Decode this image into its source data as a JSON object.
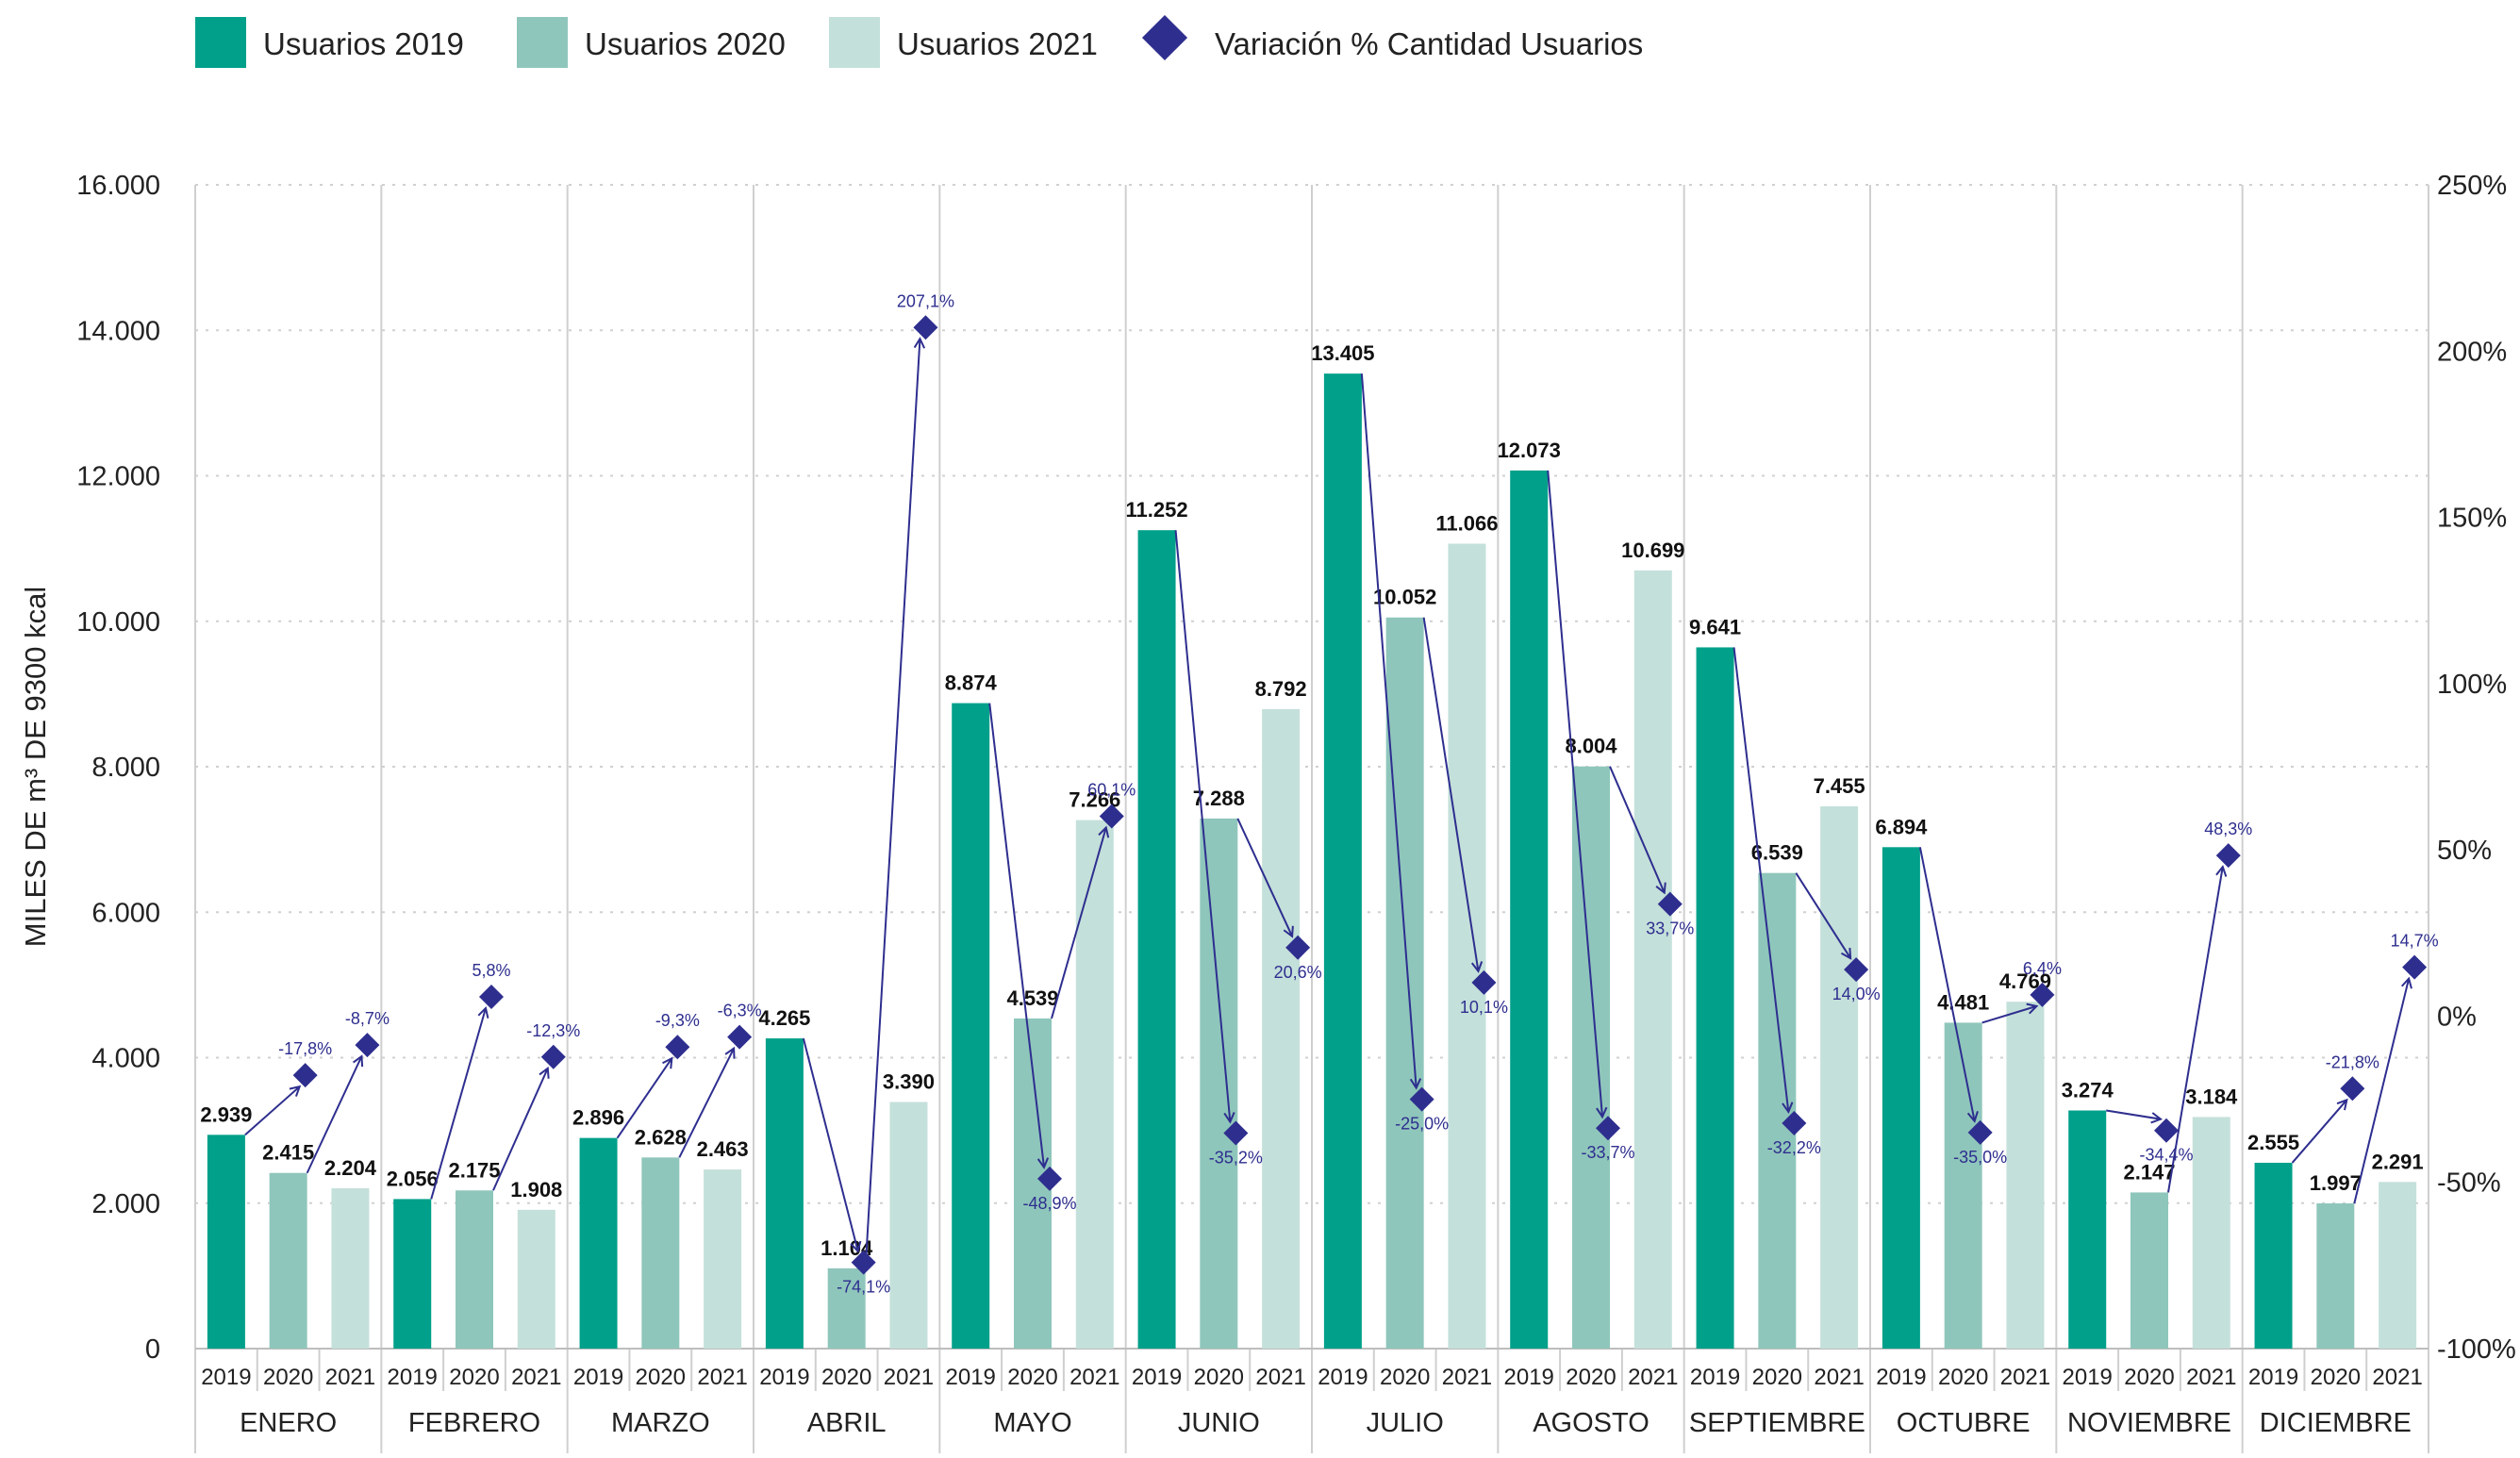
{
  "chart_data": {
    "type": "bar",
    "ylabel": "MILES DE m³ DE 9300 kcal",
    "ylim": [
      0,
      16000
    ],
    "y_ticks": [
      "0",
      "2.000",
      "4.000",
      "6.000",
      "8.000",
      "10.000",
      "12.000",
      "14.000",
      "16.000"
    ],
    "y2lim": [
      -100,
      250
    ],
    "y2_ticks": [
      "-100%",
      "-50%",
      "0%",
      "50%",
      "100%",
      "150%",
      "200%",
      "250%"
    ],
    "grid": true,
    "legend_position": "top-left",
    "categories": [
      "ENERO",
      "FEBRERO",
      "MARZO",
      "ABRIL",
      "MAYO",
      "JUNIO",
      "JULIO",
      "AGOSTO",
      "SEPTIEMBRE",
      "OCTUBRE",
      "NOVIEMBRE",
      "DICIEMBRE"
    ],
    "years": [
      "2019",
      "2020",
      "2021"
    ],
    "series": [
      {
        "name": "Usuarios 2019",
        "color": "#00a08a",
        "values": [
          2939,
          2056,
          2896,
          4265,
          8874,
          11252,
          13405,
          12073,
          9641,
          6894,
          3274,
          2555
        ],
        "labels": [
          "2.939",
          "2.056",
          "2.896",
          "4.265",
          "8.874",
          "11.252",
          "13.405",
          "12.073",
          "9.641",
          "6.894",
          "3.274",
          "2.555"
        ]
      },
      {
        "name": "Usuarios 2020",
        "color": "#8fc6bb",
        "values": [
          2415,
          2175,
          2628,
          1104,
          4539,
          7288,
          10052,
          8004,
          6539,
          4481,
          2147,
          1997
        ],
        "labels": [
          "2.415",
          "2.175",
          "2.628",
          "1.104",
          "4.539",
          "7.288",
          "10.052",
          "8.004",
          "6.539",
          "4.481",
          "2.147",
          "1.997"
        ]
      },
      {
        "name": "Usuarios 2021",
        "color": "#c4e0da",
        "values": [
          2204,
          1908,
          2463,
          3390,
          7266,
          8792,
          11066,
          10699,
          7455,
          4769,
          3184,
          2291
        ],
        "labels": [
          "2.204",
          "1.908",
          "2.463",
          "3.390",
          "7.266",
          "8.792",
          "11.066",
          "10.699",
          "7.455",
          "4.769",
          "3.184",
          "2.291"
        ]
      }
    ],
    "variation": {
      "name": "Variación % Cantidad Usuarios",
      "color": "#2e2e8f",
      "v2020": [
        -17.8,
        5.8,
        -9.3,
        -74.1,
        -48.9,
        -35.2,
        -25.0,
        -33.7,
        -32.2,
        -35.0,
        -34.4,
        -21.8
      ],
      "v2020_labels": [
        "-17,8%",
        "5,8%",
        "-9,3%",
        "-74,1%",
        "-48,9%",
        "-35,2%",
        "-25,0%",
        "-33,7%",
        "-32,2%",
        "-35,0%",
        "-34,4%",
        "-21,8%"
      ],
      "v2021": [
        -8.7,
        -12.3,
        -6.3,
        207.1,
        60.1,
        20.6,
        10.1,
        33.7,
        14.0,
        6.4,
        48.3,
        14.7
      ],
      "v2021_labels": [
        "-8,7%",
        "-12,3%",
        "-6,3%",
        "207,1%",
        "60,1%",
        "20,6%",
        "10,1%",
        "33,7%",
        "14,0%",
        "6,4%",
        "48,3%",
        "14,7%"
      ]
    }
  }
}
